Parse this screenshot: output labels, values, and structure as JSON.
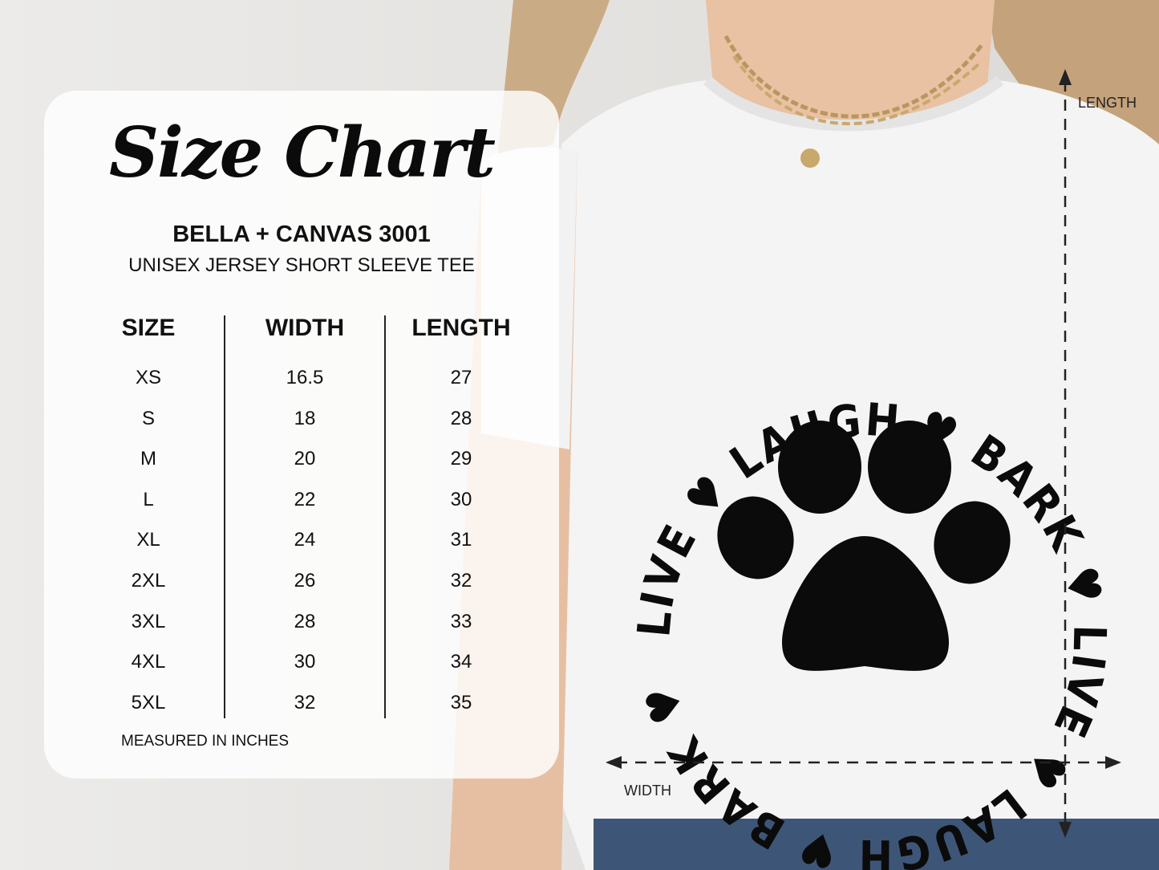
{
  "chart_title": "Size Chart",
  "brand": "BELLA + CANVAS 3001",
  "product": "UNISEX JERSEY SHORT SLEEVE TEE",
  "table": {
    "headers": [
      "SIZE",
      "WIDTH",
      "LENGTH"
    ],
    "rows": [
      [
        "XS",
        "16.5",
        "27"
      ],
      [
        "S",
        "18",
        "28"
      ],
      [
        "M",
        "20",
        "29"
      ],
      [
        "L",
        "22",
        "30"
      ],
      [
        "XL",
        "24",
        "31"
      ],
      [
        "2XL",
        "26",
        "32"
      ],
      [
        "3XL",
        "28",
        "33"
      ],
      [
        "4XL",
        "30",
        "34"
      ],
      [
        "5XL",
        "32",
        "35"
      ]
    ]
  },
  "note": "MEASURED IN INCHES",
  "dimensions": {
    "length_label": "LENGTH",
    "width_label": "WIDTH"
  },
  "shirt_print": {
    "circle_text": "LIVE ♥ LAUGH ♥ BARK ♥ LIVE ♥ LAUGH ♥ BARK ♥",
    "icon": "paw-print-icon"
  },
  "colors": {
    "ink": "#0b0b0b",
    "shirt": "#f4f4f4",
    "panel": "#ffffff"
  }
}
